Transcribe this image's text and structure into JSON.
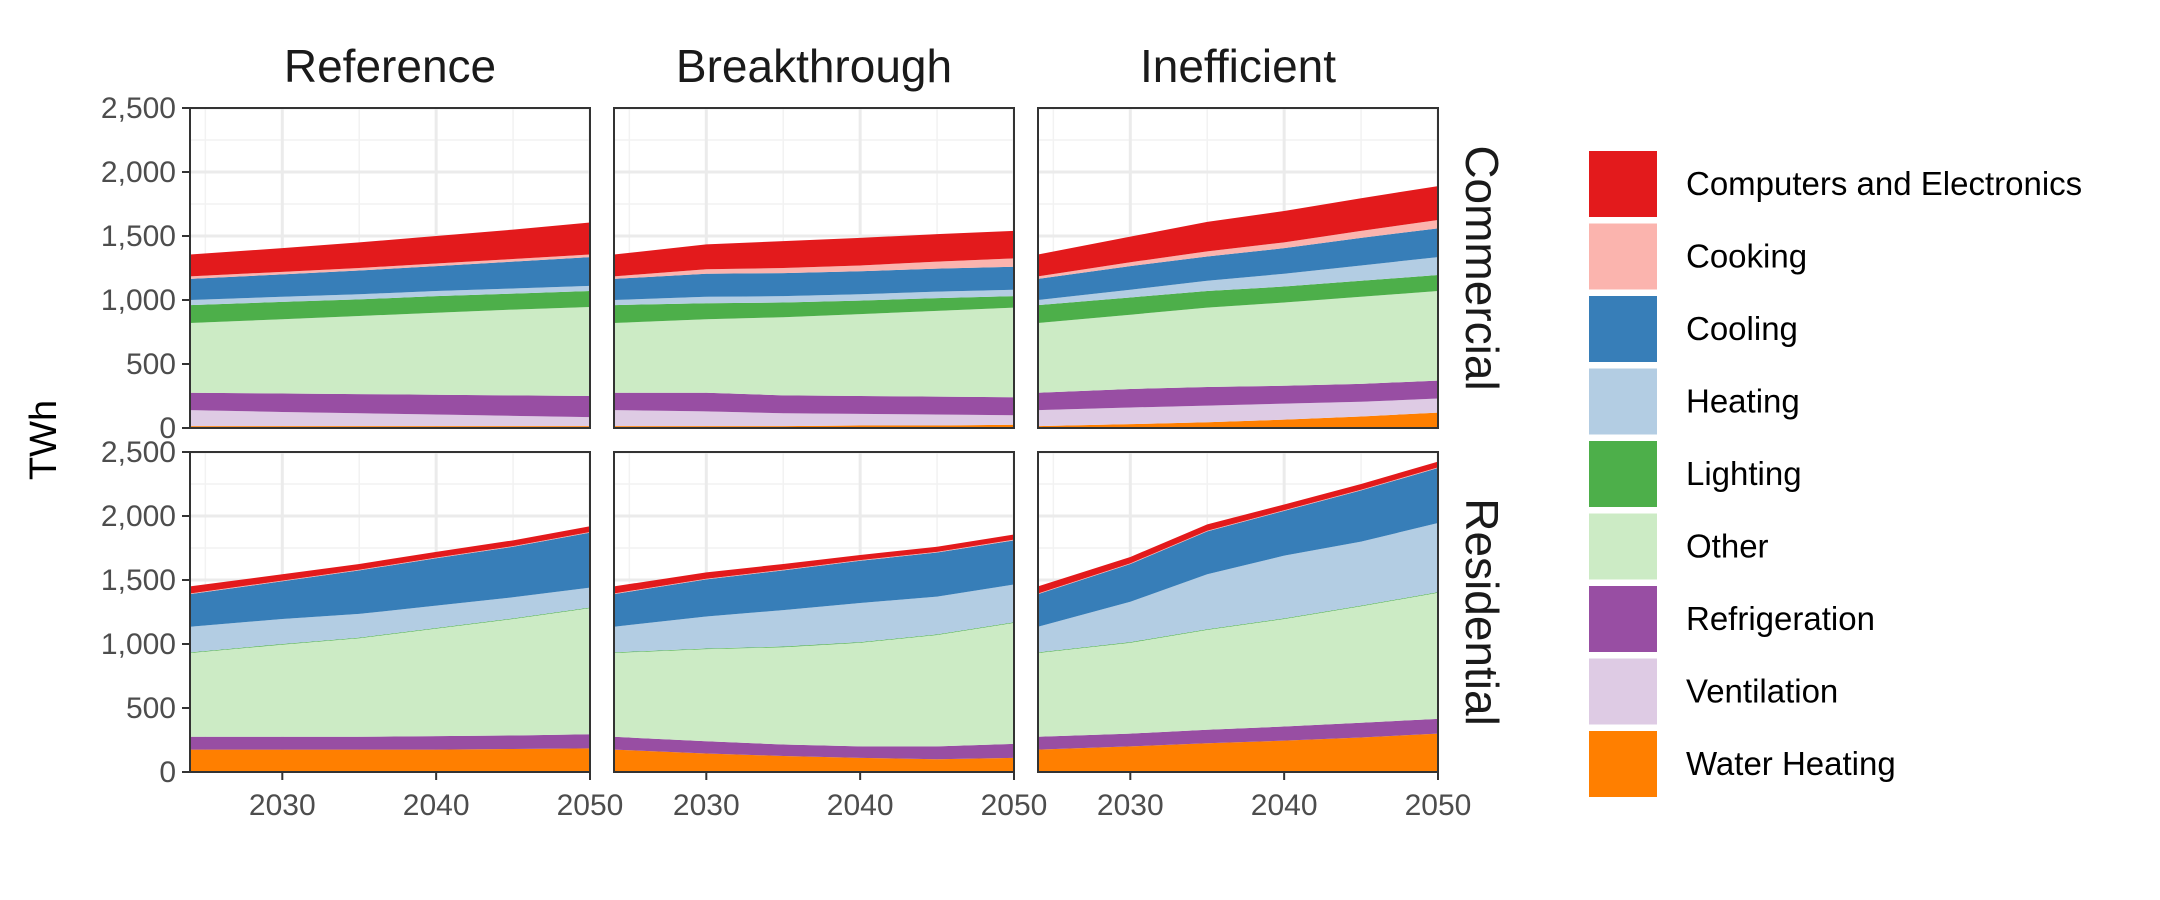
{
  "chart_data": {
    "type": "area",
    "stacked": true,
    "ylabel": "TWh",
    "xlabel": "",
    "xlim": [
      2024,
      2050
    ],
    "ylim": [
      0,
      2500
    ],
    "x_ticks": [
      2030,
      2040,
      2050
    ],
    "y_ticks": [
      0,
      500,
      1000,
      1500,
      2000,
      2500
    ],
    "y_tick_labels": [
      "0",
      "500",
      "1,000",
      "1,500",
      "2,000",
      "2,500"
    ],
    "grid": true,
    "legend_position": "right",
    "column_facets": [
      "Reference",
      "Breakthrough",
      "Inefficient"
    ],
    "row_facets": [
      "Commercial",
      "Residential"
    ],
    "series_order": [
      "Water Heating",
      "Ventilation",
      "Refrigeration",
      "Other",
      "Lighting",
      "Heating",
      "Cooling",
      "Cooking",
      "Computers and Electronics"
    ],
    "legend": [
      {
        "name": "Computers and Electronics",
        "color": "#E31A1C"
      },
      {
        "name": "Cooking",
        "color": "#FBB4AE"
      },
      {
        "name": "Cooling",
        "color": "#377EB8"
      },
      {
        "name": "Heating",
        "color": "#B3CDE3"
      },
      {
        "name": "Lighting",
        "color": "#4DAF4A"
      },
      {
        "name": "Other",
        "color": "#CCEBC5"
      },
      {
        "name": "Refrigeration",
        "color": "#984EA3"
      },
      {
        "name": "Ventilation",
        "color": "#DECBE4"
      },
      {
        "name": "Water Heating",
        "color": "#FF7F00"
      }
    ],
    "x": [
      2024,
      2030,
      2035,
      2040,
      2045,
      2050
    ],
    "panels": [
      {
        "row": "Commercial",
        "column": "Reference",
        "series": {
          "Water Heating": [
            15,
            15,
            15,
            15,
            15,
            15
          ],
          "Ventilation": [
            125,
            110,
            100,
            90,
            80,
            70
          ],
          "Refrigeration": [
            135,
            145,
            150,
            155,
            160,
            165
          ],
          "Other": [
            545,
            580,
            610,
            640,
            670,
            695
          ],
          "Lighting": [
            140,
            135,
            130,
            130,
            125,
            125
          ],
          "Heating": [
            40,
            40,
            40,
            40,
            40,
            40
          ],
          "Cooling": [
            165,
            175,
            185,
            195,
            210,
            225
          ],
          "Cooking": [
            20,
            20,
            20,
            20,
            20,
            20
          ],
          "Computers and Electronics": [
            170,
            185,
            200,
            215,
            230,
            250
          ]
        }
      },
      {
        "row": "Commercial",
        "column": "Breakthrough",
        "series": {
          "Water Heating": [
            15,
            15,
            15,
            20,
            20,
            25
          ],
          "Ventilation": [
            125,
            115,
            100,
            90,
            85,
            75
          ],
          "Refrigeration": [
            135,
            145,
            140,
            140,
            140,
            140
          ],
          "Other": [
            545,
            575,
            610,
            640,
            670,
            700
          ],
          "Lighting": [
            140,
            125,
            115,
            105,
            100,
            90
          ],
          "Heating": [
            40,
            50,
            50,
            50,
            50,
            50
          ],
          "Cooling": [
            165,
            180,
            180,
            180,
            180,
            180
          ],
          "Cooking": [
            20,
            35,
            40,
            45,
            55,
            65
          ],
          "Computers and Electronics": [
            170,
            195,
            210,
            215,
            215,
            215
          ]
        }
      },
      {
        "row": "Commercial",
        "column": "Inefficient",
        "series": {
          "Water Heating": [
            15,
            30,
            45,
            65,
            90,
            120
          ],
          "Ventilation": [
            125,
            130,
            130,
            125,
            115,
            110
          ],
          "Refrigeration": [
            135,
            145,
            145,
            140,
            140,
            140
          ],
          "Other": [
            545,
            580,
            620,
            650,
            680,
            700
          ],
          "Lighting": [
            140,
            135,
            130,
            125,
            125,
            125
          ],
          "Heating": [
            40,
            60,
            80,
            100,
            120,
            140
          ],
          "Cooling": [
            165,
            185,
            190,
            200,
            215,
            225
          ],
          "Cooking": [
            20,
            30,
            40,
            45,
            55,
            65
          ],
          "Computers and Electronics": [
            170,
            200,
            230,
            245,
            255,
            265
          ]
        }
      },
      {
        "row": "Residential",
        "column": "Reference",
        "series": {
          "Water Heating": [
            175,
            175,
            175,
            175,
            180,
            185
          ],
          "Ventilation": [
            0,
            0,
            0,
            0,
            0,
            0
          ],
          "Refrigeration": [
            100,
            100,
            100,
            105,
            105,
            110
          ],
          "Other": [
            655,
            720,
            770,
            840,
            910,
            985
          ],
          "Lighting": [
            5,
            5,
            5,
            5,
            5,
            5
          ],
          "Heating": [
            200,
            195,
            185,
            175,
            165,
            155
          ],
          "Cooling": [
            255,
            295,
            340,
            370,
            395,
            430
          ],
          "Cooking": [
            5,
            5,
            5,
            5,
            5,
            5
          ],
          "Computers and Electronics": [
            55,
            50,
            45,
            45,
            45,
            45
          ]
        }
      },
      {
        "row": "Residential",
        "column": "Breakthrough",
        "series": {
          "Water Heating": [
            175,
            145,
            125,
            110,
            100,
            110
          ],
          "Ventilation": [
            0,
            0,
            0,
            0,
            0,
            0
          ],
          "Refrigeration": [
            100,
            95,
            90,
            90,
            100,
            110
          ],
          "Other": [
            655,
            720,
            760,
            810,
            870,
            945
          ],
          "Lighting": [
            5,
            5,
            5,
            5,
            5,
            5
          ],
          "Heating": [
            200,
            250,
            285,
            305,
            295,
            295
          ],
          "Cooling": [
            255,
            290,
            310,
            330,
            345,
            345
          ],
          "Cooking": [
            5,
            5,
            5,
            5,
            5,
            5
          ],
          "Computers and Electronics": [
            55,
            50,
            45,
            40,
            40,
            40
          ]
        }
      },
      {
        "row": "Residential",
        "column": "Inefficient",
        "series": {
          "Water Heating": [
            175,
            200,
            225,
            245,
            270,
            300
          ],
          "Ventilation": [
            0,
            0,
            0,
            0,
            0,
            0
          ],
          "Refrigeration": [
            100,
            100,
            105,
            110,
            115,
            115
          ],
          "Other": [
            655,
            710,
            780,
            840,
            910,
            985
          ],
          "Lighting": [
            5,
            5,
            5,
            5,
            5,
            5
          ],
          "Heating": [
            200,
            315,
            430,
            490,
            500,
            540
          ],
          "Cooling": [
            255,
            295,
            335,
            350,
            400,
            430
          ],
          "Cooking": [
            5,
            5,
            5,
            5,
            5,
            5
          ],
          "Computers and Electronics": [
            55,
            50,
            50,
            45,
            45,
            45
          ]
        }
      }
    ]
  }
}
